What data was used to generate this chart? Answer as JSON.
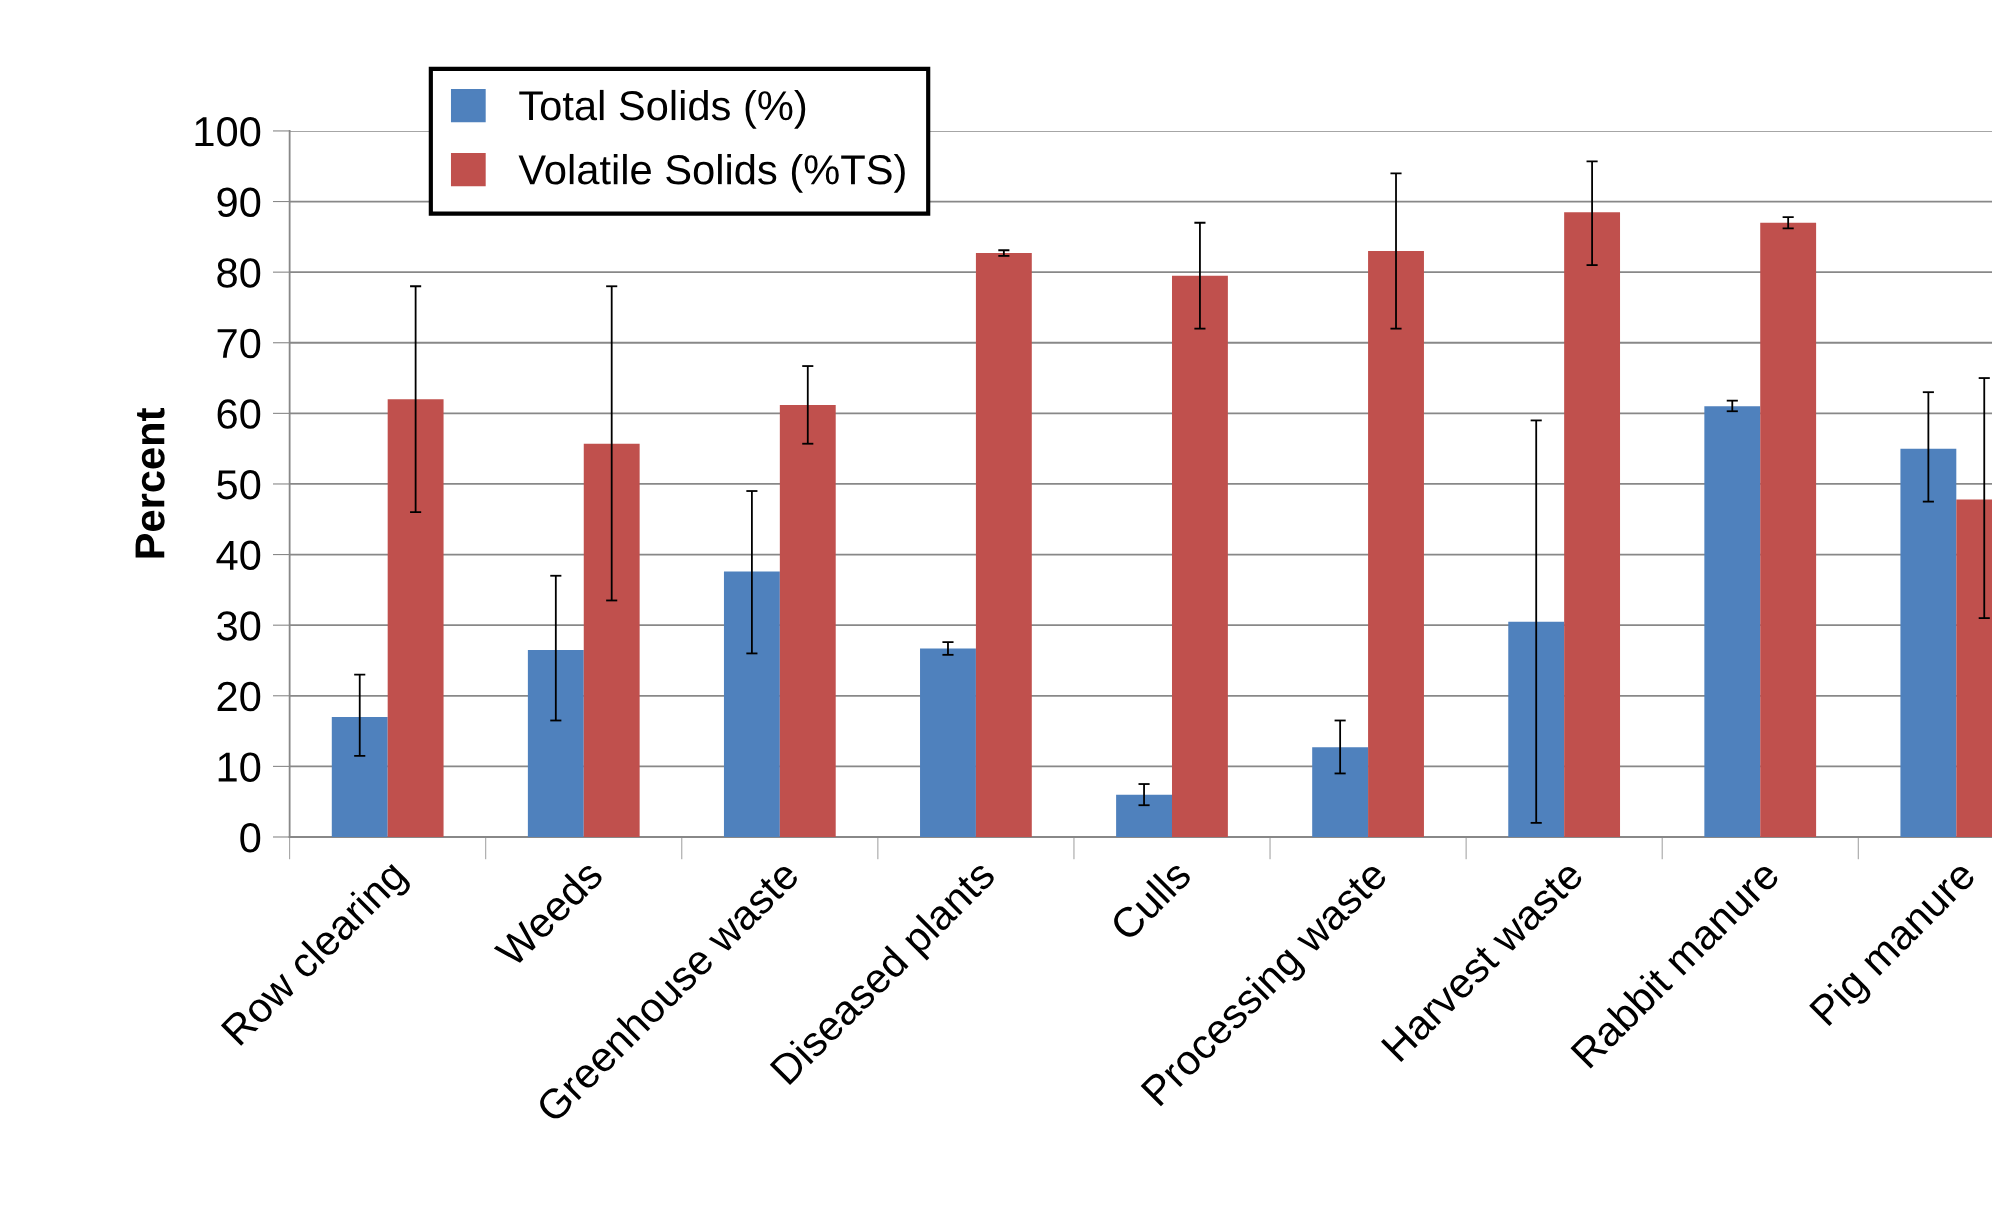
{
  "chart_data": {
    "type": "bar",
    "ylabel": "Percent",
    "categories": [
      "Row clearing",
      "Weeds",
      "Greenhouse waste",
      "Diseased plants",
      "Culls",
      "Processing waste",
      "Harvest waste",
      "Rabbit manure",
      "Pig manure"
    ],
    "series": [
      {
        "name": "Total Solids (%)",
        "color": "#4f81bd",
        "values": [
          17,
          26.5,
          37.6,
          26.7,
          6,
          12.7,
          30.5,
          61,
          55
        ],
        "errors": [
          [
            11.5,
            23
          ],
          [
            16.5,
            37
          ],
          [
            26,
            49
          ],
          [
            25.8,
            27.6
          ],
          [
            4.5,
            7.5
          ],
          [
            9,
            16.5
          ],
          [
            2,
            59
          ],
          [
            60.3,
            61.8
          ],
          [
            47.5,
            63
          ]
        ]
      },
      {
        "name": "Volatile Solids (%TS)",
        "color": "#c0504d",
        "values": [
          62,
          55.7,
          61.2,
          82.7,
          79.5,
          83,
          88.5,
          87,
          47.8
        ],
        "errors": [
          [
            46,
            78
          ],
          [
            33.5,
            78
          ],
          [
            55.7,
            66.7
          ],
          [
            82.3,
            83.1
          ],
          [
            72,
            87
          ],
          [
            72,
            94
          ],
          [
            81,
            95.7
          ],
          [
            86.2,
            87.8
          ],
          [
            31,
            65
          ]
        ]
      }
    ],
    "ylim": [
      0,
      100
    ],
    "yticks": [
      0,
      10,
      20,
      30,
      40,
      50,
      60,
      70,
      80,
      90,
      100
    ],
    "grid": "y",
    "legend": "top left"
  }
}
